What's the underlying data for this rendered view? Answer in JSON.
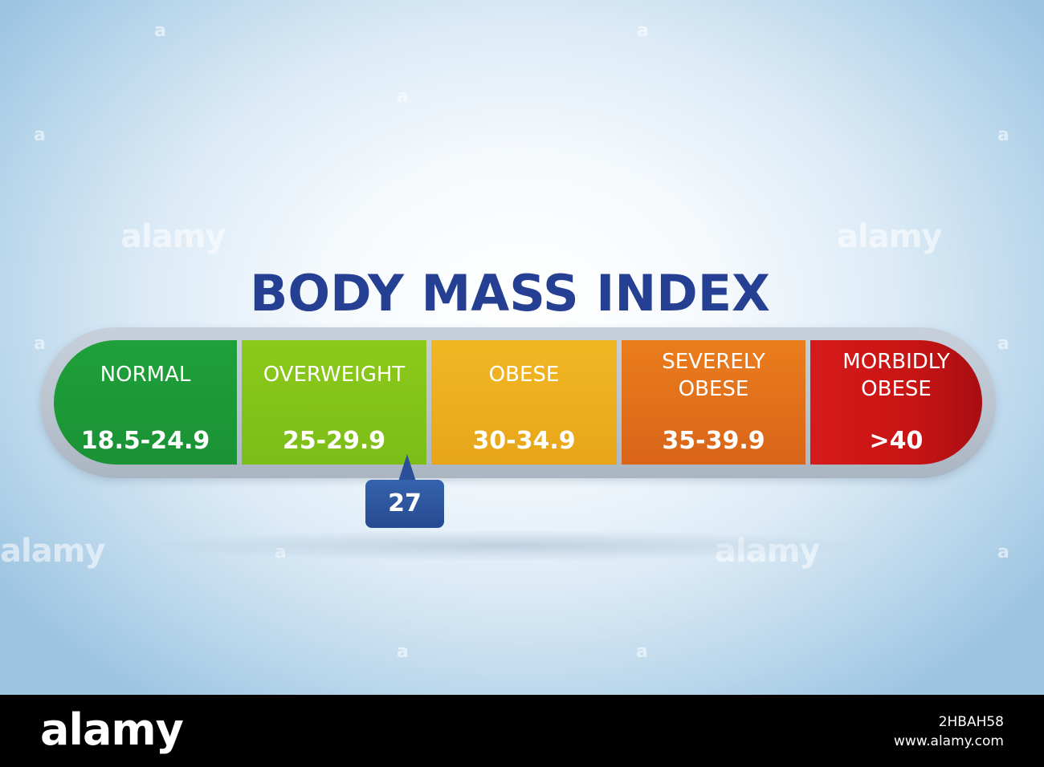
{
  "title": "BODY MASS INDEX",
  "categories": [
    {
      "label": "NORMAL",
      "range": "18.5-24.9",
      "color": "#1a9234"
    },
    {
      "label": "OVERWEIGHT",
      "range": "25-29.9",
      "color": "#7cbd18"
    },
    {
      "label": "OBESE",
      "range": "30-34.9",
      "color": "#e8a51a"
    },
    {
      "label": "SEVERELY\nOBESE",
      "range": "35-39.9",
      "color": "#d9641a"
    },
    {
      "label": "MORBIDLY\nOBESE",
      "range": ">40",
      "color": "#c81414"
    }
  ],
  "indicator": {
    "value": "27"
  },
  "watermark": {
    "text": "alamy",
    "mark": "a"
  },
  "footer": {
    "logo": "alamy",
    "image_id": "2HBAH58",
    "url": "www.alamy.com"
  },
  "colors": {
    "title": "#253f93",
    "indicator": "#2b4f98",
    "background": "#e8f2fa"
  }
}
